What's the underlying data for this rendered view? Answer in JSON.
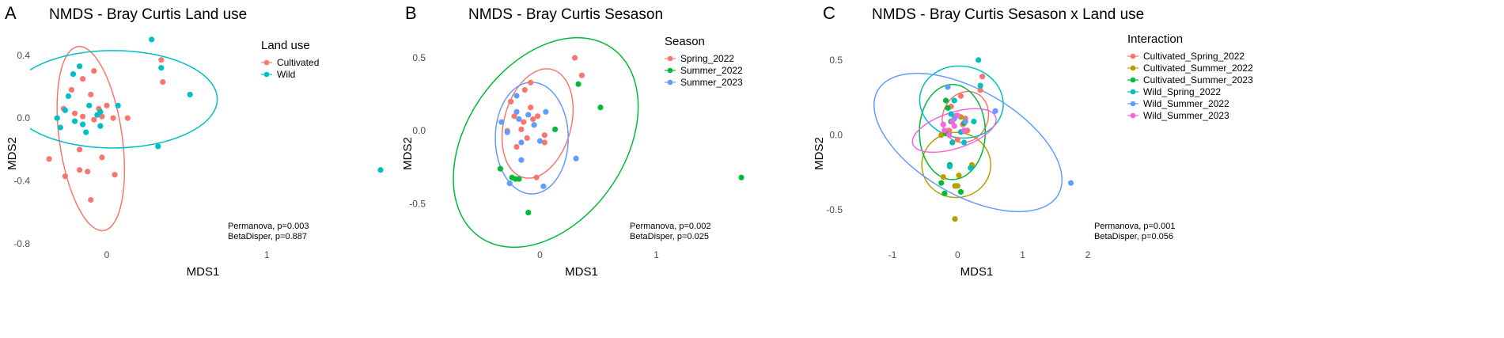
{
  "chart_data": [
    {
      "type": "scatter",
      "panel_label": "A",
      "title": "NMDS - Bray Curtis Land use",
      "xlabel": "MDS1",
      "ylabel": "MDS2",
      "xlim": [
        -0.42,
        1.72
      ],
      "ylim": [
        -0.87,
        0.56
      ],
      "xticks": [
        {
          "value": 0,
          "label": "0"
        },
        {
          "value": 1,
          "label": "1"
        }
      ],
      "yticks": [
        {
          "value": 0.4,
          "label": "0.4"
        },
        {
          "value": 0.0,
          "label": "0.0"
        },
        {
          "value": -0.4,
          "label": "-0.4"
        },
        {
          "value": -0.8,
          "label": "-0.8"
        }
      ],
      "grid": false,
      "legend": {
        "title": "Land use",
        "position": "top-right"
      },
      "series": [
        {
          "name": "Cultivated",
          "color": "#F8766D",
          "points": [
            [
              -0.08,
              0.3
            ],
            [
              -0.15,
              0.25
            ],
            [
              -0.22,
              0.18
            ],
            [
              -0.1,
              0.15
            ],
            [
              -0.05,
              0.06
            ],
            [
              0.0,
              0.08
            ],
            [
              -0.27,
              0.06
            ],
            [
              -0.2,
              0.03
            ],
            [
              -0.15,
              0.01
            ],
            [
              -0.08,
              -0.01
            ],
            [
              -0.03,
              0.01
            ],
            [
              0.04,
              0.0
            ],
            [
              0.13,
              0.0
            ],
            [
              0.35,
              0.23
            ],
            [
              0.34,
              0.37
            ],
            [
              -0.17,
              -0.2
            ],
            [
              -0.03,
              -0.25
            ],
            [
              -0.36,
              -0.26
            ],
            [
              -0.17,
              -0.33
            ],
            [
              -0.12,
              -0.34
            ],
            [
              -0.26,
              -0.37
            ],
            [
              0.05,
              -0.36
            ],
            [
              -0.1,
              -0.52
            ]
          ],
          "ellipse": {
            "cx": -0.1,
            "cy": -0.13,
            "rx": 0.58,
            "ry": 0.2,
            "angle": -98
          }
        },
        {
          "name": "Wild",
          "color": "#00BFC4",
          "points": [
            [
              0.28,
              0.5
            ],
            [
              0.34,
              0.32
            ],
            [
              -0.17,
              0.33
            ],
            [
              -0.21,
              0.28
            ],
            [
              -0.24,
              0.14
            ],
            [
              -0.11,
              0.08
            ],
            [
              0.07,
              0.08
            ],
            [
              -0.26,
              0.05
            ],
            [
              -0.31,
              0.0
            ],
            [
              -0.2,
              -0.02
            ],
            [
              -0.15,
              -0.04
            ],
            [
              -0.06,
              0.02
            ],
            [
              -0.04,
              0.04
            ],
            [
              0.52,
              0.15
            ],
            [
              -0.29,
              -0.06
            ],
            [
              -0.13,
              -0.09
            ],
            [
              -0.04,
              -0.05
            ],
            [
              0.32,
              -0.18
            ],
            [
              1.71,
              -0.33
            ]
          ],
          "ellipse": {
            "cx": 0.04,
            "cy": 0.12,
            "rx": 0.65,
            "ry": 0.31,
            "angle": 0
          }
        }
      ],
      "annotations": [
        "Permanova, p=0.003",
        "BetaDisper, p=0.887"
      ]
    },
    {
      "type": "scatter",
      "panel_label": "B",
      "title": "NMDS - Bray Curtis Sesason",
      "xlabel": "MDS1",
      "ylabel": "MDS2",
      "xlim": [
        -0.9,
        1.75
      ],
      "ylim": [
        -0.85,
        0.69
      ],
      "xticks": [
        {
          "value": 0,
          "label": "0"
        },
        {
          "value": 1,
          "label": "1"
        }
      ],
      "yticks": [
        {
          "value": 0.5,
          "label": "0.5"
        },
        {
          "value": 0.0,
          "label": "0.0"
        },
        {
          "value": -0.5,
          "label": "-0.5"
        }
      ],
      "grid": false,
      "legend": {
        "title": "Season",
        "position": "top-right"
      },
      "series": [
        {
          "name": "Spring_2022",
          "color": "#F8766D",
          "points": [
            [
              0.3,
              0.5
            ],
            [
              0.36,
              0.38
            ],
            [
              -0.08,
              0.33
            ],
            [
              -0.13,
              0.28
            ],
            [
              -0.25,
              0.2
            ],
            [
              -0.08,
              0.16
            ],
            [
              -0.22,
              0.1
            ],
            [
              -0.14,
              0.06
            ],
            [
              -0.06,
              0.08
            ],
            [
              -0.02,
              0.1
            ],
            [
              -0.16,
              0.01
            ],
            [
              -0.28,
              0.0
            ],
            [
              -0.11,
              -0.05
            ],
            [
              0.04,
              -0.03
            ],
            [
              -0.2,
              -0.11
            ],
            [
              0.04,
              -0.08
            ],
            [
              -0.03,
              -0.32
            ]
          ],
          "ellipse": {
            "cx": -0.02,
            "cy": 0.05,
            "rx": 0.48,
            "ry": 0.23,
            "angle": -75
          }
        },
        {
          "name": "Summer_2022",
          "color": "#00BA38",
          "points": [
            [
              0.33,
              0.32
            ],
            [
              0.52,
              0.16
            ],
            [
              0.13,
              0.01
            ],
            [
              -0.05,
              0.04
            ],
            [
              -0.34,
              -0.26
            ],
            [
              -0.24,
              -0.32
            ],
            [
              -0.18,
              -0.33
            ],
            [
              -0.21,
              -0.33
            ],
            [
              -0.1,
              -0.56
            ],
            [
              1.73,
              -0.32
            ]
          ],
          "ellipse": {
            "cx": 0.05,
            "cy": -0.08,
            "rx": 0.99,
            "ry": 0.54,
            "angle": -55
          }
        },
        {
          "name": "Summer_2023",
          "color": "#619CFF",
          "points": [
            [
              -0.2,
              0.24
            ],
            [
              -0.2,
              0.13
            ],
            [
              -0.33,
              0.06
            ],
            [
              -0.18,
              0.08
            ],
            [
              -0.1,
              0.11
            ],
            [
              0.05,
              0.13
            ],
            [
              -0.28,
              -0.01
            ],
            [
              -0.05,
              0.04
            ],
            [
              -0.16,
              -0.08
            ],
            [
              0.0,
              -0.07
            ],
            [
              -0.16,
              -0.2
            ],
            [
              0.31,
              -0.19
            ],
            [
              -0.26,
              -0.36
            ],
            [
              0.03,
              -0.38
            ]
          ],
          "ellipse": {
            "cx": -0.07,
            "cy": -0.05,
            "rx": 0.48,
            "ry": 0.25,
            "angle": -90
          }
        }
      ],
      "annotations": [
        "Permanova, p=0.002",
        "BetaDisper, p=0.025"
      ]
    },
    {
      "type": "scatter",
      "panel_label": "C",
      "title": "NMDS - Bray Curtis Sesason x Land use",
      "xlabel": "MDS1",
      "ylabel": "MDS2",
      "xlim": [
        -1.62,
        2.45
      ],
      "ylim": [
        -0.8,
        0.7
      ],
      "xticks": [
        {
          "value": -1,
          "label": "-1"
        },
        {
          "value": 0,
          "label": "0"
        },
        {
          "value": 1,
          "label": "1"
        },
        {
          "value": 2,
          "label": "2"
        }
      ],
      "yticks": [
        {
          "value": 0.5,
          "label": "0.5"
        },
        {
          "value": 0.0,
          "label": "0.0"
        },
        {
          "value": -0.5,
          "label": "-0.5"
        }
      ],
      "grid": false,
      "legend": {
        "title": "Interaction",
        "position": "top-right"
      },
      "series": [
        {
          "name": "Cultivated_Spring_2022",
          "color": "#F8766D",
          "points": [
            [
              0.38,
              0.39
            ],
            [
              0.35,
              0.3
            ],
            [
              0.05,
              0.26
            ],
            [
              -0.1,
              0.19
            ],
            [
              -0.02,
              0.13
            ],
            [
              0.12,
              0.11
            ],
            [
              0.08,
              0.07
            ],
            [
              -0.13,
              0.03
            ],
            [
              0.05,
              0.02
            ],
            [
              0.15,
              0.03
            ],
            [
              0.0,
              -0.03
            ],
            [
              -0.08,
              -0.05
            ]
          ],
          "ellipse": {
            "cx": 0.12,
            "cy": 0.12,
            "rx": 0.4,
            "ry": 0.15,
            "angle": -65
          }
        },
        {
          "name": "Cultivated_Summer_2022",
          "color": "#B79F00",
          "points": [
            [
              0.05,
              0.12
            ],
            [
              -0.25,
              0.0
            ],
            [
              -0.22,
              -0.28
            ],
            [
              -0.04,
              -0.34
            ],
            [
              0.0,
              -0.34
            ],
            [
              -0.04,
              -0.56
            ],
            [
              0.22,
              -0.2
            ],
            [
              0.02,
              -0.27
            ]
          ],
          "ellipse": {
            "cx": -0.02,
            "cy": -0.2,
            "rx": 0.5,
            "ry": 0.23,
            "angle": -90
          }
        },
        {
          "name": "Cultivated_Summer_2023",
          "color": "#00BA38",
          "points": [
            [
              -0.18,
              0.23
            ],
            [
              -0.15,
              0.18
            ],
            [
              -0.1,
              0.09
            ],
            [
              0.1,
              0.08
            ],
            [
              -0.18,
              0.01
            ],
            [
              -0.12,
              -0.2
            ],
            [
              -0.25,
              -0.32
            ],
            [
              0.05,
              -0.38
            ],
            [
              -0.2,
              -0.39
            ]
          ],
          "ellipse": {
            "cx": -0.08,
            "cy": 0.02,
            "rx": 0.73,
            "ry": 0.22,
            "angle": -90
          }
        },
        {
          "name": "Wild_Spring_2022",
          "color": "#00BFC4",
          "points": [
            [
              0.32,
              0.5
            ],
            [
              0.35,
              0.33
            ],
            [
              -0.05,
              0.23
            ],
            [
              -0.1,
              0.14
            ],
            [
              0.05,
              0.02
            ],
            [
              -0.08,
              -0.05
            ],
            [
              0.25,
              0.09
            ],
            [
              0.1,
              -0.05
            ],
            [
              -0.12,
              -0.21
            ],
            [
              0.2,
              -0.22
            ]
          ],
          "ellipse": {
            "cx": 0.06,
            "cy": 0.22,
            "rx": 0.55,
            "ry": 0.28,
            "angle": -80
          }
        },
        {
          "name": "Wild_Summer_2022",
          "color": "#619CFF",
          "points": [
            [
              -0.15,
              0.32
            ],
            [
              0.58,
              0.16
            ],
            [
              -0.05,
              0.11
            ],
            [
              0.12,
              0.09
            ],
            [
              1.74,
              -0.32
            ]
          ],
          "ellipse": {
            "cx": 0.16,
            "cy": -0.05,
            "rx": 1.6,
            "ry": 0.35,
            "angle": 30
          }
        },
        {
          "name": "Wild_Summer_2023",
          "color": "#F564E3",
          "points": [
            [
              -0.22,
              0.07
            ],
            [
              -0.13,
              0.0
            ],
            [
              -0.08,
              0.09
            ],
            [
              -0.05,
              0.06
            ],
            [
              0.0,
              0.13
            ],
            [
              -0.2,
              0.03
            ],
            [
              0.1,
              0.03
            ]
          ],
          "ellipse": {
            "cx": -0.05,
            "cy": 0.03,
            "rx": 0.67,
            "ry": 0.12,
            "angle": -18
          }
        }
      ],
      "annotations": [
        "Permanova, p=0.001",
        "BetaDisper, p=0.056"
      ]
    }
  ]
}
